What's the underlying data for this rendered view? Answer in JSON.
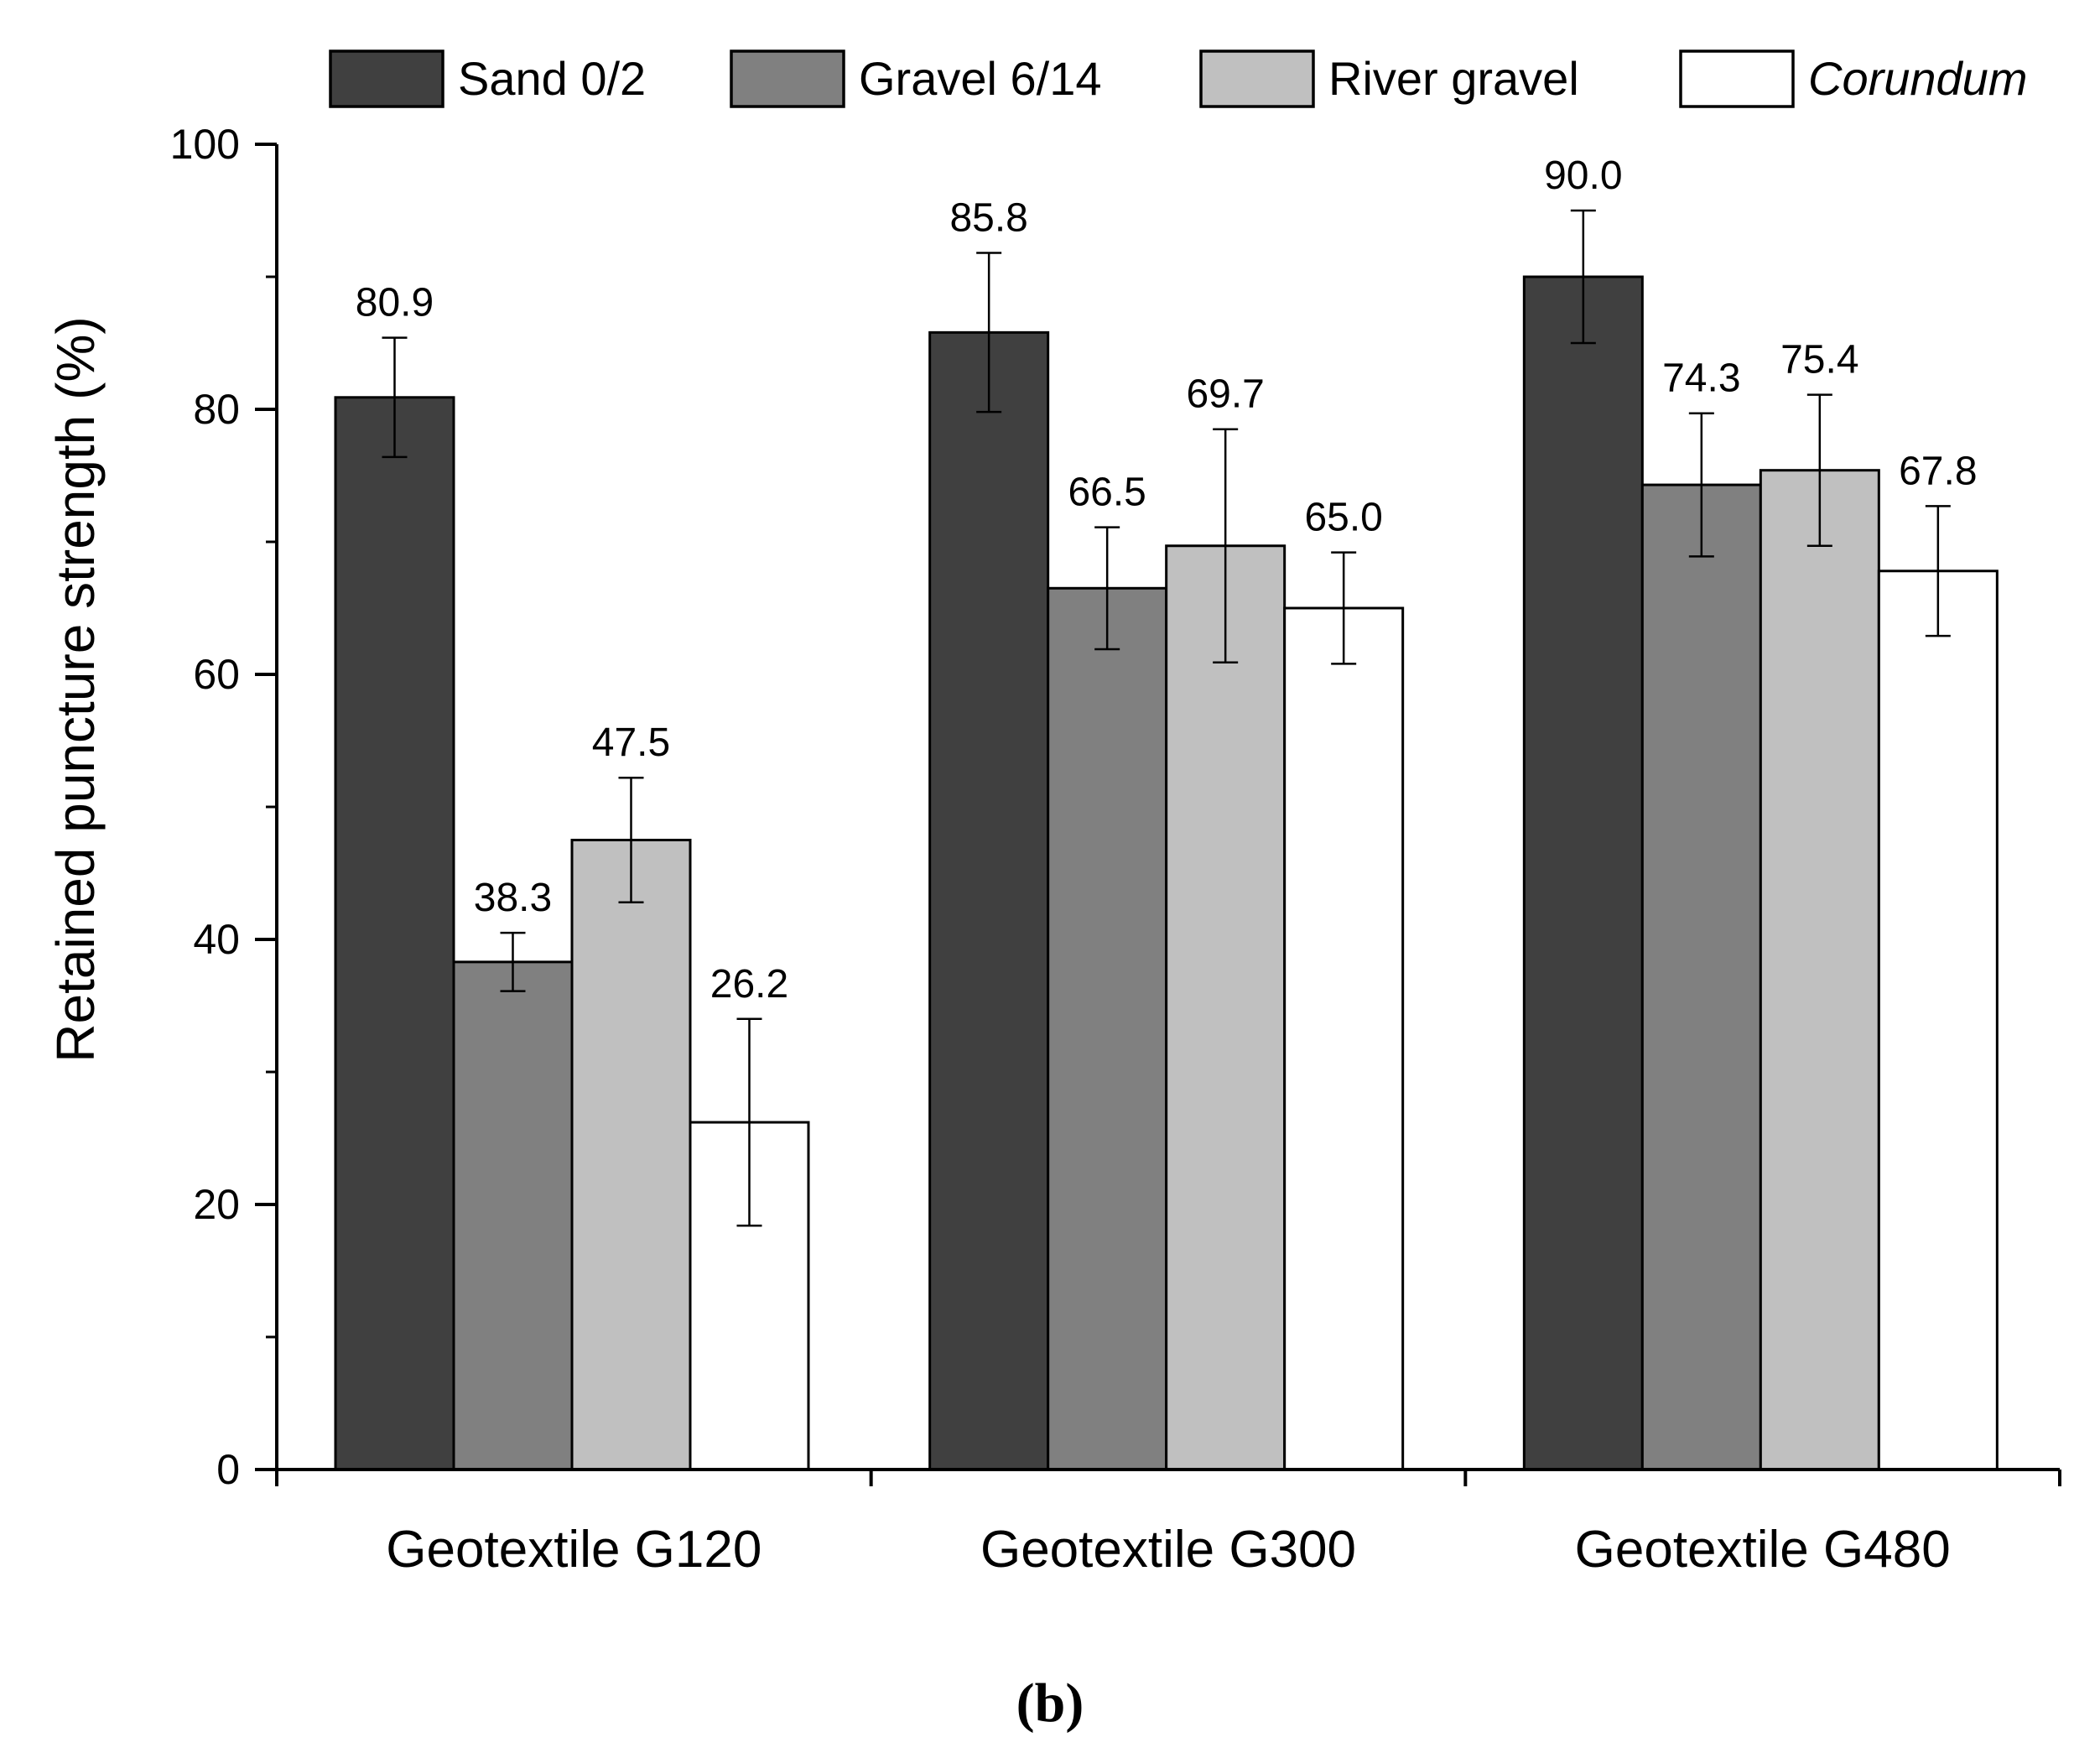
{
  "chart_data": {
    "type": "bar",
    "title": "",
    "xlabel": "",
    "ylabel": "Retained puncture strength (%)",
    "ylim": [
      0,
      100
    ],
    "yticks": [
      0,
      20,
      40,
      60,
      80,
      100
    ],
    "ytick_labels": [
      "0",
      "20",
      "40",
      "60",
      "80",
      "100"
    ],
    "grid": false,
    "legend_position": "top",
    "categories": [
      "Geotextile G120",
      "Geotextile G300",
      "Geotextile G480"
    ],
    "series": [
      {
        "name": "Sand 0/2",
        "italic": false,
        "color": "#404040",
        "values": [
          80.9,
          85.8,
          90.0
        ],
        "labels": [
          "80.9",
          "85.8",
          "90.0"
        ],
        "error": [
          4.5,
          6.0,
          5.0
        ]
      },
      {
        "name": "Gravel 6/14",
        "italic": false,
        "color": "#808080",
        "values": [
          38.3,
          66.5,
          74.3
        ],
        "labels": [
          "38.3",
          "66.5",
          "74.3"
        ],
        "error": [
          2.2,
          4.6,
          5.4
        ]
      },
      {
        "name": "River gravel",
        "italic": false,
        "color": "#c0c0c0",
        "values": [
          47.5,
          69.7,
          75.4
        ],
        "labels": [
          "47.5",
          "69.7",
          "75.4"
        ],
        "error": [
          4.7,
          8.8,
          5.7
        ]
      },
      {
        "name": "Corundum",
        "italic": true,
        "color": "#ffffff",
        "values": [
          26.2,
          65.0,
          67.8
        ],
        "labels": [
          "26.2",
          "65.0",
          "67.8"
        ],
        "error": [
          7.8,
          4.2,
          4.9
        ]
      }
    ]
  },
  "caption": {
    "prefix": "(",
    "letter": "b",
    "suffix": ")"
  }
}
